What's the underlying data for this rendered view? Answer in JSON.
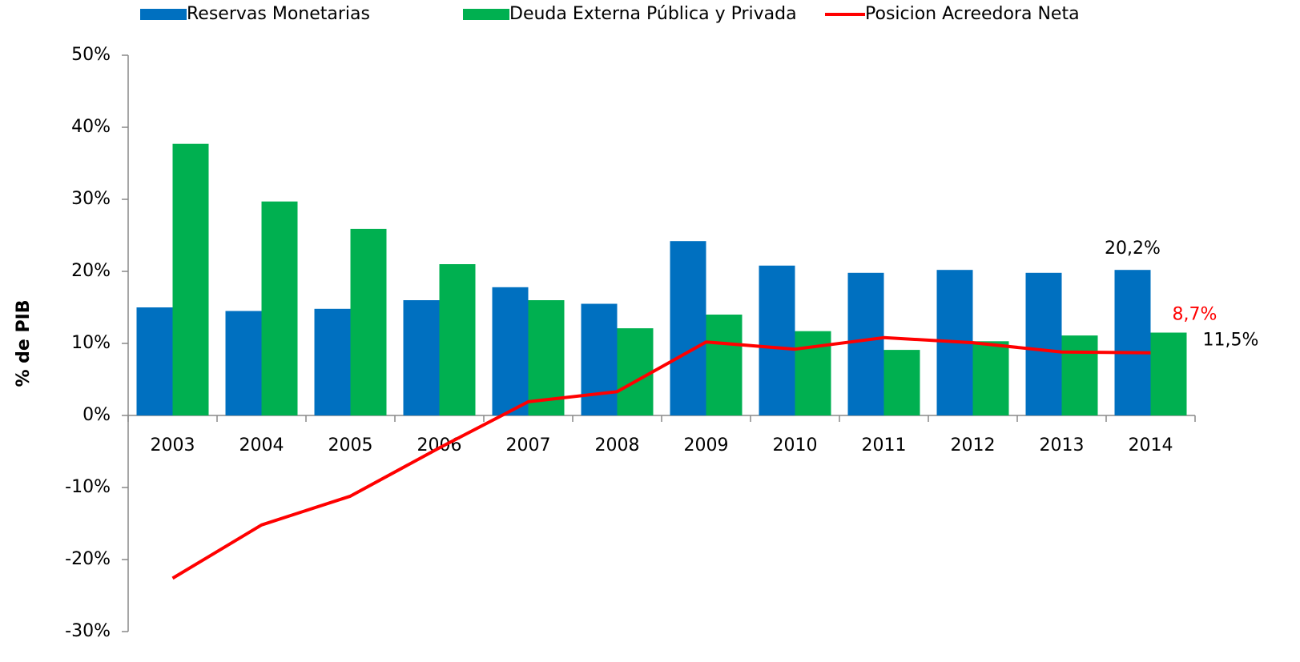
{
  "chart_data": {
    "type": "bar",
    "categories": [
      "2003",
      "2004",
      "2005",
      "2006",
      "2007",
      "2008",
      "2009",
      "2010",
      "2011",
      "2012",
      "2013",
      "2014"
    ],
    "series": [
      {
        "name": "Reservas Monetarias",
        "type": "bar",
        "color": "#0070c0",
        "values": [
          15.0,
          14.5,
          14.8,
          16.0,
          17.8,
          15.5,
          24.2,
          20.8,
          19.8,
          20.2,
          19.8,
          20.2
        ],
        "value_labels": [
          null,
          null,
          null,
          null,
          null,
          null,
          null,
          null,
          null,
          null,
          null,
          "20,2%"
        ]
      },
      {
        "name": "Deuda Externa Pública y Privada",
        "type": "bar",
        "color": "#00b050",
        "values": [
          37.7,
          29.7,
          25.9,
          21.0,
          16.0,
          12.1,
          14.0,
          11.7,
          9.1,
          10.3,
          11.1,
          11.5
        ],
        "value_labels": [
          null,
          null,
          null,
          null,
          null,
          null,
          null,
          null,
          null,
          null,
          null,
          "11,5%"
        ]
      },
      {
        "name": "Posicion Acreedora Neta",
        "type": "line",
        "color": "#ff0000",
        "values": [
          -22.6,
          -15.2,
          -11.2,
          -4.5,
          1.9,
          3.3,
          10.2,
          9.2,
          10.8,
          10.1,
          8.8,
          8.7
        ],
        "value_labels": [
          null,
          null,
          null,
          null,
          null,
          null,
          null,
          null,
          null,
          null,
          null,
          "8,7%"
        ]
      }
    ],
    "y_label": "% de PIB",
    "ylim": [
      -30,
      50
    ],
    "yticks": [
      {
        "value": -30,
        "label": "-30%"
      },
      {
        "value": -20,
        "label": "-20%"
      },
      {
        "value": -10,
        "label": "-10%"
      },
      {
        "value": 0,
        "label": "0%"
      },
      {
        "value": 10,
        "label": "10%"
      },
      {
        "value": 20,
        "label": "20%"
      },
      {
        "value": 30,
        "label": "30%"
      },
      {
        "value": 40,
        "label": "40%"
      },
      {
        "value": 50,
        "label": "50%"
      }
    ],
    "legend": "top",
    "grid": false
  }
}
